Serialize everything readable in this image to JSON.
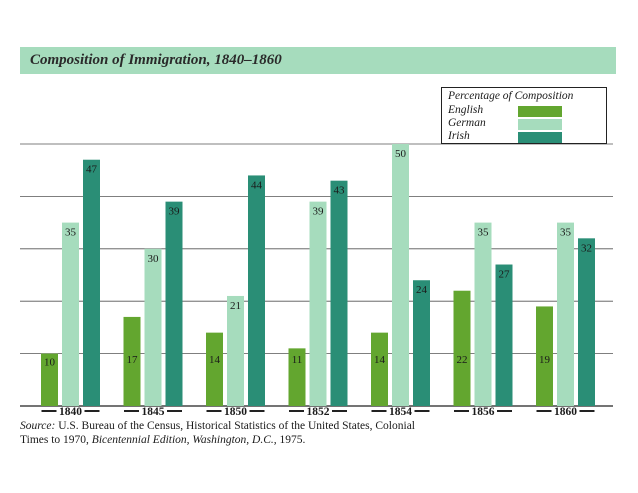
{
  "title": "Composition of Immigration, 1840–1860",
  "colors": {
    "English": "#63a62f",
    "German": "#a6dcbd",
    "Irish": "#2a8e76",
    "title_bar": "#a6dcbd"
  },
  "legend": {
    "title": "Percentage of Composition",
    "items": [
      {
        "label": "English",
        "color": "#63a62f"
      },
      {
        "label": "German",
        "color": "#a6dcbd"
      },
      {
        "label": "Irish",
        "color": "#2a8e76"
      }
    ]
  },
  "source": {
    "prefix": "Source:",
    "text1": " U.S. Bureau of the Census, Historical Statistics of the United States, Colonial Times to 1970, ",
    "italic": "Bicentennial Edition, Washington, D.C.,",
    "text2": " 1975."
  },
  "chart_data": {
    "type": "bar",
    "title": "Composition of Immigration, 1840–1860",
    "categories": [
      "1840",
      "1845",
      "1850",
      "1852",
      "1854",
      "1856",
      "1860"
    ],
    "series": [
      {
        "name": "English",
        "values": [
          10,
          17,
          14,
          11,
          14,
          22,
          19
        ]
      },
      {
        "name": "German",
        "values": [
          35,
          30,
          21,
          39,
          50,
          35,
          35
        ]
      },
      {
        "name": "Irish",
        "values": [
          47,
          39,
          44,
          43,
          24,
          27,
          32
        ]
      }
    ],
    "ylim": [
      0,
      50
    ],
    "grid": true,
    "legend_position": "top-right",
    "xlabel": "",
    "ylabel": ""
  }
}
